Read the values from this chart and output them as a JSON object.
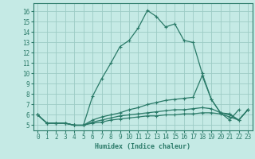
{
  "title": "",
  "xlabel": "Humidex (Indice chaleur)",
  "xlim": [
    -0.5,
    23.5
  ],
  "ylim": [
    4.5,
    16.8
  ],
  "xticks": [
    0,
    1,
    2,
    3,
    4,
    5,
    6,
    7,
    8,
    9,
    10,
    11,
    12,
    13,
    14,
    15,
    16,
    17,
    18,
    19,
    20,
    21,
    22,
    23
  ],
  "yticks": [
    5,
    6,
    7,
    8,
    9,
    10,
    11,
    12,
    13,
    14,
    15,
    16
  ],
  "bg_color": "#c5eae5",
  "line_color": "#2a7a68",
  "grid_color": "#9dccc5",
  "lines": [
    {
      "x": [
        0,
        1,
        2,
        3,
        4,
        5,
        6,
        7,
        8,
        9,
        10,
        11,
        12,
        13,
        14,
        15,
        16,
        17,
        18,
        19,
        20,
        21,
        22
      ],
      "y": [
        6.0,
        5.2,
        5.2,
        5.2,
        5.0,
        5.0,
        7.8,
        9.5,
        11.0,
        12.6,
        13.2,
        14.4,
        16.1,
        15.5,
        14.5,
        14.8,
        13.2,
        13.0,
        10.0,
        7.5,
        6.2,
        5.5,
        6.5
      ]
    },
    {
      "x": [
        0,
        1,
        2,
        3,
        4,
        5,
        6,
        7,
        8,
        9,
        10,
        11,
        12,
        13,
        14,
        15,
        16,
        17,
        18,
        19,
        20,
        21,
        22,
        23
      ],
      "y": [
        6.0,
        5.2,
        5.2,
        5.2,
        5.0,
        5.0,
        5.5,
        5.8,
        6.0,
        6.2,
        6.5,
        6.7,
        7.0,
        7.2,
        7.4,
        7.5,
        7.6,
        7.7,
        9.8,
        7.5,
        6.2,
        6.1,
        5.5,
        6.5
      ]
    },
    {
      "x": [
        0,
        1,
        2,
        3,
        4,
        5,
        6,
        7,
        8,
        9,
        10,
        11,
        12,
        13,
        14,
        15,
        16,
        17,
        18,
        19,
        20,
        21,
        22,
        23
      ],
      "y": [
        6.0,
        5.2,
        5.2,
        5.2,
        5.0,
        5.0,
        5.3,
        5.5,
        5.7,
        5.9,
        6.0,
        6.1,
        6.2,
        6.3,
        6.4,
        6.5,
        6.5,
        6.6,
        6.7,
        6.6,
        6.2,
        6.0,
        5.5,
        6.5
      ]
    },
    {
      "x": [
        0,
        1,
        2,
        3,
        4,
        5,
        6,
        7,
        8,
        9,
        10,
        11,
        12,
        13,
        14,
        15,
        16,
        17,
        18,
        19,
        20,
        21,
        22,
        23
      ],
      "y": [
        6.0,
        5.2,
        5.2,
        5.2,
        5.0,
        5.0,
        5.2,
        5.3,
        5.5,
        5.6,
        5.7,
        5.8,
        5.9,
        5.9,
        6.0,
        6.0,
        6.1,
        6.1,
        6.2,
        6.2,
        6.1,
        5.8,
        5.5,
        6.5
      ]
    }
  ]
}
